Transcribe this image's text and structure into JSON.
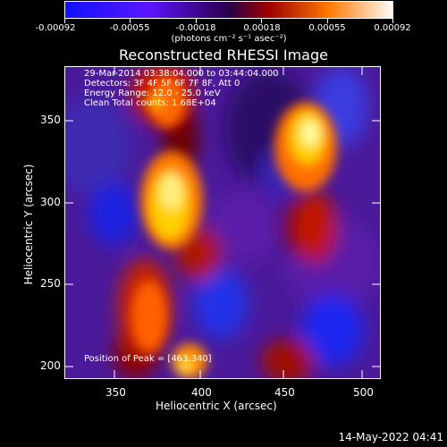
{
  "colorbar": {
    "tick_labels": [
      "-0.00092",
      "-0.00055",
      "-0.00018",
      "0.00018",
      "0.00055",
      "0.00092"
    ],
    "units_label": "(photons cm⁻² s⁻¹ asec⁻²)"
  },
  "plot": {
    "title": "Reconstructed RHESSI Image",
    "annotation": {
      "line1": "29-Mar-2014 03:38:04.000 to 03:44:04.000",
      "line2": "Detectors: 3F 4F 5F 6F 7F 8F, Att 0",
      "line3": "Energy Range: 12.0 - 25.0 keV",
      "line4": "Clean     Total counts: 1.68E+04"
    },
    "peak_label": "Position of Peak = [463,340]",
    "x_axis": {
      "label": "Heliocentric X (arcsec)",
      "ticks": [
        "350",
        "400",
        "450",
        "500"
      ]
    },
    "y_axis": {
      "label": "Heliocentric Y (arcsec)",
      "ticks": [
        "200",
        "250",
        "300",
        "350"
      ]
    }
  },
  "footer": {
    "timestamp": "14-May-2022 04:41"
  },
  "colors": {
    "background": "#000000",
    "foreground": "#ffffff"
  }
}
